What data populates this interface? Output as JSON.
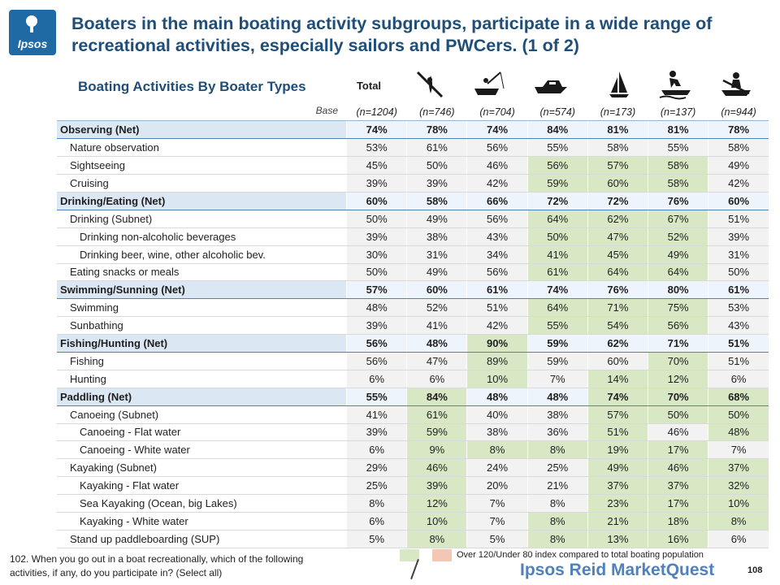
{
  "logo": {
    "text": "Ipsos"
  },
  "title": "Boaters in the main boating activity subgroups, participate in a wide range of recreational activities, especially sailors and PWCers. (1 of 2)",
  "subtitle": "Boating Activities By Boater Types",
  "total_label": "Total",
  "column_icons": [
    "kayak-paddler-icon",
    "fishing-boat-icon",
    "cruiser-boat-icon",
    "sailboat-icon",
    "pwc-rider-icon",
    "rowboat-icon"
  ],
  "base": {
    "label": "Base",
    "values": [
      "(n=1204)",
      "(n=746)",
      "(n=704)",
      "(n=574)",
      "(n=173)",
      "(n=137)",
      "(n=944)"
    ]
  },
  "rows": [
    {
      "label": "Observing (Net)",
      "level": 0,
      "net": true,
      "values": [
        "74%",
        "78%",
        "74%",
        "84%",
        "81%",
        "81%",
        "78%"
      ],
      "hl": [
        false,
        false,
        false,
        false,
        false,
        false,
        false
      ]
    },
    {
      "label": "Nature observation",
      "level": 1,
      "values": [
        "53%",
        "61%",
        "56%",
        "55%",
        "58%",
        "55%",
        "58%"
      ],
      "hl": [
        false,
        false,
        false,
        false,
        false,
        false,
        false
      ]
    },
    {
      "label": "Sightseeing",
      "level": 1,
      "values": [
        "45%",
        "50%",
        "46%",
        "56%",
        "57%",
        "58%",
        "49%"
      ],
      "hl": [
        false,
        false,
        false,
        true,
        true,
        true,
        false
      ]
    },
    {
      "label": "Cruising",
      "level": 1,
      "values": [
        "39%",
        "39%",
        "42%",
        "59%",
        "60%",
        "58%",
        "42%"
      ],
      "hl": [
        false,
        false,
        false,
        true,
        true,
        true,
        false
      ]
    },
    {
      "label": "Drinking/Eating (Net)",
      "level": 0,
      "net": true,
      "values": [
        "60%",
        "58%",
        "66%",
        "72%",
        "72%",
        "76%",
        "60%"
      ],
      "hl": [
        false,
        false,
        false,
        false,
        false,
        false,
        false
      ]
    },
    {
      "label": "Drinking (Subnet)",
      "level": 1,
      "values": [
        "50%",
        "49%",
        "56%",
        "64%",
        "62%",
        "67%",
        "51%"
      ],
      "hl": [
        false,
        false,
        false,
        true,
        true,
        true,
        false
      ]
    },
    {
      "label": "Drinking non-alcoholic beverages",
      "level": 2,
      "values": [
        "39%",
        "38%",
        "43%",
        "50%",
        "47%",
        "52%",
        "39%"
      ],
      "hl": [
        false,
        false,
        false,
        true,
        true,
        true,
        false
      ]
    },
    {
      "label": "Drinking beer, wine, other alcoholic bev.",
      "level": 2,
      "values": [
        "30%",
        "31%",
        "34%",
        "41%",
        "45%",
        "49%",
        "31%"
      ],
      "hl": [
        false,
        false,
        false,
        true,
        true,
        true,
        false
      ]
    },
    {
      "label": "Eating snacks or meals",
      "level": 1,
      "values": [
        "50%",
        "49%",
        "56%",
        "61%",
        "64%",
        "64%",
        "50%"
      ],
      "hl": [
        false,
        false,
        false,
        true,
        true,
        true,
        false
      ]
    },
    {
      "label": "Swimming/Sunning (Net)",
      "level": 0,
      "net": true,
      "values": [
        "57%",
        "60%",
        "61%",
        "74%",
        "76%",
        "80%",
        "61%"
      ],
      "hl": [
        false,
        false,
        false,
        false,
        false,
        false,
        false
      ]
    },
    {
      "label": "Swimming",
      "level": 1,
      "values": [
        "48%",
        "52%",
        "51%",
        "64%",
        "71%",
        "75%",
        "53%"
      ],
      "hl": [
        false,
        false,
        false,
        true,
        true,
        true,
        false
      ]
    },
    {
      "label": "Sunbathing",
      "level": 1,
      "values": [
        "39%",
        "41%",
        "42%",
        "55%",
        "54%",
        "56%",
        "43%"
      ],
      "hl": [
        false,
        false,
        false,
        true,
        true,
        true,
        false
      ]
    },
    {
      "label": "Fishing/Hunting (Net)",
      "level": 0,
      "net": true,
      "values": [
        "56%",
        "48%",
        "90%",
        "59%",
        "62%",
        "71%",
        "51%"
      ],
      "hl": [
        false,
        false,
        true,
        false,
        false,
        false,
        false
      ]
    },
    {
      "label": "Fishing",
      "level": 1,
      "values": [
        "56%",
        "47%",
        "89%",
        "59%",
        "60%",
        "70%",
        "51%"
      ],
      "hl": [
        false,
        false,
        true,
        false,
        false,
        true,
        false
      ]
    },
    {
      "label": "Hunting",
      "level": 1,
      "values": [
        "6%",
        "6%",
        "10%",
        "7%",
        "14%",
        "12%",
        "6%"
      ],
      "hl": [
        false,
        false,
        true,
        false,
        true,
        true,
        false
      ]
    },
    {
      "label": "Paddling (Net)",
      "level": 0,
      "net": true,
      "values": [
        "55%",
        "84%",
        "48%",
        "48%",
        "74%",
        "70%",
        "68%"
      ],
      "hl": [
        false,
        true,
        false,
        false,
        true,
        true,
        true
      ]
    },
    {
      "label": "Canoeing (Subnet)",
      "level": 1,
      "values": [
        "41%",
        "61%",
        "40%",
        "38%",
        "57%",
        "50%",
        "50%"
      ],
      "hl": [
        false,
        true,
        false,
        false,
        true,
        true,
        true
      ]
    },
    {
      "label": "Canoeing - Flat water",
      "level": 2,
      "values": [
        "39%",
        "59%",
        "38%",
        "36%",
        "51%",
        "46%",
        "48%"
      ],
      "hl": [
        false,
        true,
        false,
        false,
        true,
        false,
        true
      ]
    },
    {
      "label": "Canoeing - White water",
      "level": 2,
      "values": [
        "6%",
        "9%",
        "8%",
        "8%",
        "19%",
        "17%",
        "7%"
      ],
      "hl": [
        false,
        true,
        true,
        true,
        true,
        true,
        false
      ]
    },
    {
      "label": "Kayaking (Subnet)",
      "level": 1,
      "values": [
        "29%",
        "46%",
        "24%",
        "25%",
        "49%",
        "46%",
        "37%"
      ],
      "hl": [
        false,
        true,
        false,
        false,
        true,
        true,
        true
      ]
    },
    {
      "label": "Kayaking - Flat water",
      "level": 2,
      "values": [
        "25%",
        "39%",
        "20%",
        "21%",
        "37%",
        "37%",
        "32%"
      ],
      "hl": [
        false,
        true,
        false,
        false,
        true,
        true,
        true
      ]
    },
    {
      "label": "Sea Kayaking (Ocean, big Lakes)",
      "level": 2,
      "values": [
        "8%",
        "12%",
        "7%",
        "8%",
        "23%",
        "17%",
        "10%"
      ],
      "hl": [
        false,
        true,
        false,
        false,
        true,
        true,
        true
      ]
    },
    {
      "label": "Kayaking - White water",
      "level": 2,
      "values": [
        "6%",
        "10%",
        "7%",
        "8%",
        "21%",
        "18%",
        "8%"
      ],
      "hl": [
        false,
        true,
        false,
        true,
        true,
        true,
        true
      ]
    },
    {
      "label": "Stand up paddleboarding (SUP)",
      "level": 1,
      "values": [
        "5%",
        "8%",
        "5%",
        "8%",
        "13%",
        "16%",
        "6%"
      ],
      "hl": [
        false,
        true,
        false,
        true,
        true,
        true,
        false
      ]
    }
  ],
  "colors": {
    "highlight_over": "#d8e8c4",
    "highlight_under": "#f4c7b4",
    "title": "#1f4e79"
  },
  "footnote": "102. When you go out in a boat recreationally, which of the following activities, if any, do you participate in? (Select all)",
  "legend_text": "Over 120/Under 80 index compared to total boating population",
  "brand": "Ipsos Reid MarketQuest",
  "page_number": "108"
}
